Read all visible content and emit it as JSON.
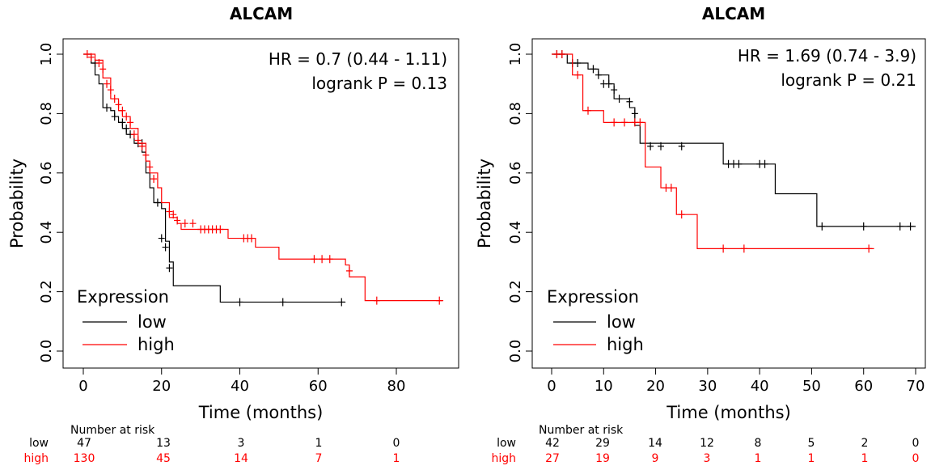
{
  "chart_data": [
    {
      "type": "line",
      "title": "ALCAM",
      "xlabel": "Time (months)",
      "ylabel": "Probability",
      "xlim": [
        -2,
        94
      ],
      "ylim": [
        0,
        1
      ],
      "xticks": [
        "0",
        "20",
        "40",
        "60",
        "80"
      ],
      "xtick_values": [
        0,
        20,
        40,
        60,
        80
      ],
      "yticks": [
        "0.0",
        "0.2",
        "0.4",
        "0.6",
        "0.8",
        "1.0"
      ],
      "ytick_values": [
        0,
        0.2,
        0.4,
        0.6,
        0.8,
        1.0
      ],
      "annotation_line1": "HR = 0.7 (0.44 - 1.11)",
      "annotation_line2": "logrank P = 0.13",
      "legend_title": "Expression",
      "legend_position": "bottom-left",
      "series": [
        {
          "name": "low",
          "color": "#000000",
          "steps": [
            [
              0,
              1.0
            ],
            [
              2,
              0.97
            ],
            [
              3,
              0.93
            ],
            [
              4,
              0.9
            ],
            [
              5,
              0.82
            ],
            [
              7,
              0.81
            ],
            [
              8,
              0.79
            ],
            [
              9,
              0.77
            ],
            [
              10,
              0.75
            ],
            [
              11,
              0.73
            ],
            [
              13,
              0.7
            ],
            [
              15,
              0.67
            ],
            [
              16,
              0.6
            ],
            [
              17,
              0.55
            ],
            [
              18,
              0.5
            ],
            [
              20,
              0.48
            ],
            [
              21,
              0.37
            ],
            [
              22,
              0.3
            ],
            [
              23,
              0.22
            ],
            [
              35,
              0.165
            ],
            [
              67,
              0.165
            ]
          ],
          "censors": [
            [
              3,
              0.97
            ],
            [
              6,
              0.82
            ],
            [
              8,
              0.79
            ],
            [
              10,
              0.77
            ],
            [
              11,
              0.75
            ],
            [
              12,
              0.73
            ],
            [
              14,
              0.7
            ],
            [
              15,
              0.7
            ],
            [
              19,
              0.5
            ],
            [
              20,
              0.38
            ],
            [
              21,
              0.35
            ],
            [
              22,
              0.28
            ],
            [
              40,
              0.165
            ],
            [
              51,
              0.165
            ],
            [
              66,
              0.165
            ]
          ]
        },
        {
          "name": "high",
          "color": "#ff0000",
          "steps": [
            [
              0,
              1.0
            ],
            [
              3,
              0.98
            ],
            [
              5,
              0.92
            ],
            [
              7,
              0.85
            ],
            [
              9,
              0.81
            ],
            [
              10,
              0.79
            ],
            [
              12,
              0.75
            ],
            [
              14,
              0.7
            ],
            [
              16,
              0.64
            ],
            [
              17,
              0.6
            ],
            [
              19,
              0.55
            ],
            [
              20,
              0.5
            ],
            [
              22,
              0.45
            ],
            [
              24,
              0.43
            ],
            [
              25,
              0.41
            ],
            [
              37,
              0.38
            ],
            [
              44,
              0.35
            ],
            [
              50,
              0.31
            ],
            [
              67,
              0.29
            ],
            [
              68,
              0.25
            ],
            [
              72,
              0.17
            ],
            [
              92,
              0.17
            ]
          ],
          "censors": [
            [
              1,
              1.0
            ],
            [
              2,
              0.99
            ],
            [
              4,
              0.97
            ],
            [
              5,
              0.95
            ],
            [
              6,
              0.9
            ],
            [
              7,
              0.88
            ],
            [
              8,
              0.85
            ],
            [
              9,
              0.83
            ],
            [
              10,
              0.81
            ],
            [
              11,
              0.79
            ],
            [
              12,
              0.77
            ],
            [
              13,
              0.73
            ],
            [
              14,
              0.71
            ],
            [
              15,
              0.69
            ],
            [
              16,
              0.66
            ],
            [
              17,
              0.62
            ],
            [
              18,
              0.58
            ],
            [
              22,
              0.47
            ],
            [
              23,
              0.46
            ],
            [
              24,
              0.44
            ],
            [
              26,
              0.43
            ],
            [
              28,
              0.43
            ],
            [
              30,
              0.41
            ],
            [
              31,
              0.41
            ],
            [
              32,
              0.41
            ],
            [
              33,
              0.41
            ],
            [
              34,
              0.41
            ],
            [
              35,
              0.41
            ],
            [
              41,
              0.38
            ],
            [
              42,
              0.38
            ],
            [
              43,
              0.38
            ],
            [
              59,
              0.31
            ],
            [
              61,
              0.31
            ],
            [
              63,
              0.31
            ],
            [
              68,
              0.27
            ],
            [
              75,
              0.17
            ],
            [
              91,
              0.17
            ]
          ]
        }
      ],
      "risk_table": {
        "heading": "Number at risk",
        "rows": [
          {
            "label": "low",
            "color": "#000000",
            "values": [
              "47",
              "13",
              "3",
              "1",
              "0"
            ]
          },
          {
            "label": "high",
            "color": "#ff0000",
            "values": [
              "130",
              "45",
              "14",
              "7",
              "1"
            ]
          }
        ]
      }
    },
    {
      "type": "line",
      "title": "ALCAM",
      "xlabel": "Time (months)",
      "ylabel": "Probability",
      "xlim": [
        -1,
        72
      ],
      "ylim": [
        0,
        1
      ],
      "xticks": [
        "0",
        "10",
        "20",
        "30",
        "40",
        "50",
        "60",
        "70"
      ],
      "xtick_values": [
        0,
        10,
        20,
        30,
        40,
        50,
        60,
        70
      ],
      "yticks": [
        "0.0",
        "0.2",
        "0.4",
        "0.6",
        "0.8",
        "1.0"
      ],
      "ytick_values": [
        0,
        0.2,
        0.4,
        0.6,
        0.8,
        1.0
      ],
      "annotation_line1": "HR = 1.69 (0.74 - 3.9)",
      "annotation_line2": "logrank P = 0.21",
      "legend_title": "Expression",
      "legend_position": "bottom-left",
      "series": [
        {
          "name": "low",
          "color": "#000000",
          "steps": [
            [
              0,
              1.0
            ],
            [
              3,
              0.97
            ],
            [
              7,
              0.95
            ],
            [
              9,
              0.93
            ],
            [
              11,
              0.9
            ],
            [
              12,
              0.85
            ],
            [
              15,
              0.82
            ],
            [
              16,
              0.76
            ],
            [
              17,
              0.7
            ],
            [
              33,
              0.63
            ],
            [
              43,
              0.53
            ],
            [
              51,
              0.42
            ],
            [
              70,
              0.42
            ]
          ],
          "censors": [
            [
              1,
              1.0
            ],
            [
              2,
              1.0
            ],
            [
              4,
              0.97
            ],
            [
              5,
              0.97
            ],
            [
              8,
              0.95
            ],
            [
              9,
              0.93
            ],
            [
              10,
              0.9
            ],
            [
              11,
              0.9
            ],
            [
              12,
              0.88
            ],
            [
              13,
              0.85
            ],
            [
              15,
              0.84
            ],
            [
              16,
              0.8
            ],
            [
              19,
              0.69
            ],
            [
              21,
              0.69
            ],
            [
              25,
              0.69
            ],
            [
              34,
              0.63
            ],
            [
              35,
              0.63
            ],
            [
              36,
              0.63
            ],
            [
              40,
              0.63
            ],
            [
              41,
              0.63
            ],
            [
              52,
              0.42
            ],
            [
              60,
              0.42
            ],
            [
              67,
              0.42
            ],
            [
              69,
              0.42
            ]
          ]
        },
        {
          "name": "high",
          "color": "#ff0000",
          "steps": [
            [
              0,
              1.0
            ],
            [
              4,
              0.93
            ],
            [
              6,
              0.81
            ],
            [
              10,
              0.77
            ],
            [
              18,
              0.62
            ],
            [
              21,
              0.55
            ],
            [
              24,
              0.46
            ],
            [
              28,
              0.345
            ],
            [
              62,
              0.345
            ]
          ],
          "censors": [
            [
              1,
              1.0
            ],
            [
              2,
              1.0
            ],
            [
              5,
              0.93
            ],
            [
              7,
              0.81
            ],
            [
              12,
              0.77
            ],
            [
              14,
              0.77
            ],
            [
              16,
              0.77
            ],
            [
              17,
              0.77
            ],
            [
              22,
              0.55
            ],
            [
              23,
              0.55
            ],
            [
              25,
              0.46
            ],
            [
              33,
              0.345
            ],
            [
              37,
              0.345
            ],
            [
              61,
              0.345
            ]
          ]
        }
      ],
      "risk_table": {
        "heading": "Number at risk",
        "rows": [
          {
            "label": "low",
            "color": "#000000",
            "values": [
              "42",
              "29",
              "14",
              "12",
              "8",
              "5",
              "2",
              "0"
            ]
          },
          {
            "label": "high",
            "color": "#ff0000",
            "values": [
              "27",
              "19",
              "9",
              "3",
              "1",
              "1",
              "1",
              "0"
            ]
          }
        ]
      }
    }
  ]
}
